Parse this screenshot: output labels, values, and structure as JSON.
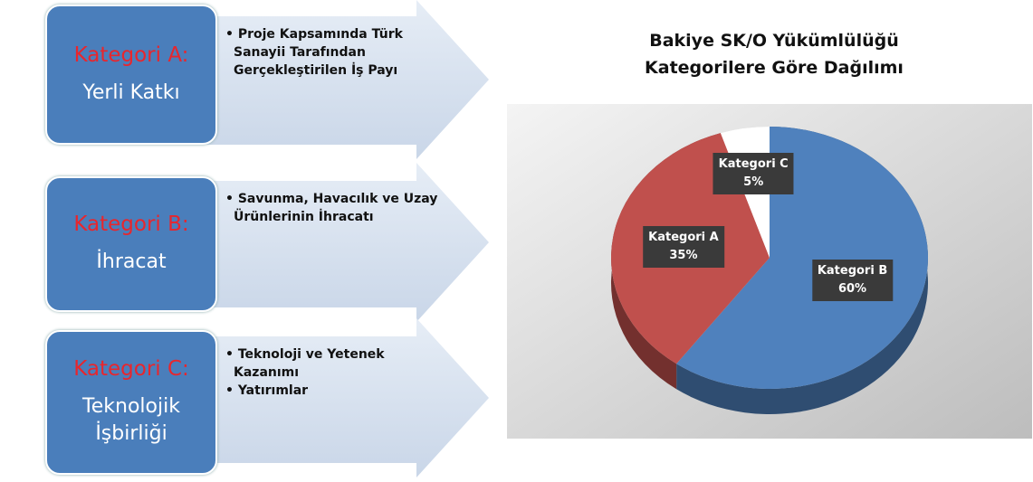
{
  "categories": [
    {
      "title": "Kategori A:",
      "subtitle": "Yerli Katkı",
      "bullets": [
        "Proje Kapsamında Türk Sanayii Tarafından Gerçekleştirilen İş Payı"
      ]
    },
    {
      "title": "Kategori B:",
      "subtitle": "İhracat",
      "bullets": [
        "Savunma, Havacılık ve Uzay Ürünlerinin İhracatı"
      ]
    },
    {
      "title": "Kategori C:",
      "subtitle": "Teknolojik İşbirliği",
      "bullets": [
        "Teknoloji ve Yetenek Kazanımı",
        "Yatırımlar"
      ]
    }
  ],
  "chart_data": {
    "type": "pie",
    "title": "Bakiye SK/O Yükümlülüğü Kategorilere Göre Dağılımı",
    "categories": [
      "Kategori B",
      "Kategori A",
      "Kategori C"
    ],
    "values": [
      60,
      35,
      5
    ],
    "value_labels": [
      "60%",
      "35%",
      "5%"
    ],
    "colors": [
      "#4f81bd",
      "#c0504d",
      "#ffffff"
    ]
  }
}
